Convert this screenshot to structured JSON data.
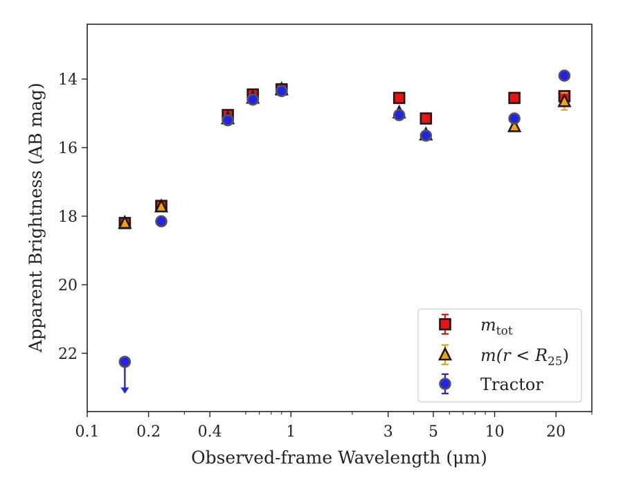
{
  "chart_data": {
    "type": "scatter",
    "xlabel": "Observed-frame Wavelength (μm)",
    "ylabel": "Apparent Brightness (AB mag)",
    "x_scale": "log",
    "xlim": [
      0.1,
      30
    ],
    "ylim": [
      23.7,
      12.4
    ],
    "y_inverted": true,
    "x_ticks": [
      0.1,
      0.2,
      0.4,
      1,
      3,
      5,
      10,
      20
    ],
    "x_tick_labels": [
      "0.1",
      "0.2",
      "0.4",
      "1",
      "3",
      "5",
      "10",
      "20"
    ],
    "y_ticks": [
      14,
      16,
      18,
      20,
      22
    ],
    "y_tick_labels": [
      "14",
      "16",
      "18",
      "20",
      "22"
    ],
    "grid": false,
    "legend_position": "lower-right",
    "series": [
      {
        "name": "m_tot",
        "label_main": "m",
        "label_sub": "tot",
        "marker": "square",
        "color": "#ee1111",
        "edge_color": "#1a1a1a",
        "error_color": "#ee1111",
        "x": [
          0.153,
          0.231,
          0.49,
          0.65,
          0.9,
          3.4,
          4.6,
          12.5,
          22.0
        ],
        "y": [
          18.2,
          17.7,
          15.05,
          14.45,
          14.3,
          14.55,
          15.15,
          14.55,
          14.5
        ]
      },
      {
        "name": "m(r < R_25)",
        "label_main": "m(r < R",
        "label_sub": "25",
        "label_tail": ")",
        "marker": "triangle",
        "color": "#f5a20a",
        "edge_color": "#1a1a1a",
        "error_color": "#f5a20a",
        "x": [
          0.153,
          0.231,
          0.49,
          0.65,
          0.9,
          3.4,
          4.6,
          12.5,
          22.0
        ],
        "y": [
          18.2,
          17.72,
          15.15,
          14.55,
          14.3,
          14.98,
          15.62,
          15.38,
          14.65
        ],
        "yerr": [
          0.04,
          0.04,
          0.03,
          0.03,
          0.03,
          0.04,
          0.05,
          0.06,
          0.25
        ]
      },
      {
        "name": "Tractor",
        "label_main": "Tractor",
        "marker": "circle",
        "color": "#2222ee",
        "edge_color": "#555555",
        "error_color": "#2222ee",
        "x": [
          0.153,
          0.231,
          0.49,
          0.65,
          0.9,
          3.4,
          4.6,
          12.5,
          22.0
        ],
        "y": [
          22.25,
          18.15,
          15.2,
          14.6,
          14.35,
          15.05,
          15.65,
          15.15,
          13.9
        ],
        "upper_limit": [
          true,
          false,
          false,
          false,
          false,
          false,
          false,
          false,
          false
        ]
      }
    ]
  }
}
